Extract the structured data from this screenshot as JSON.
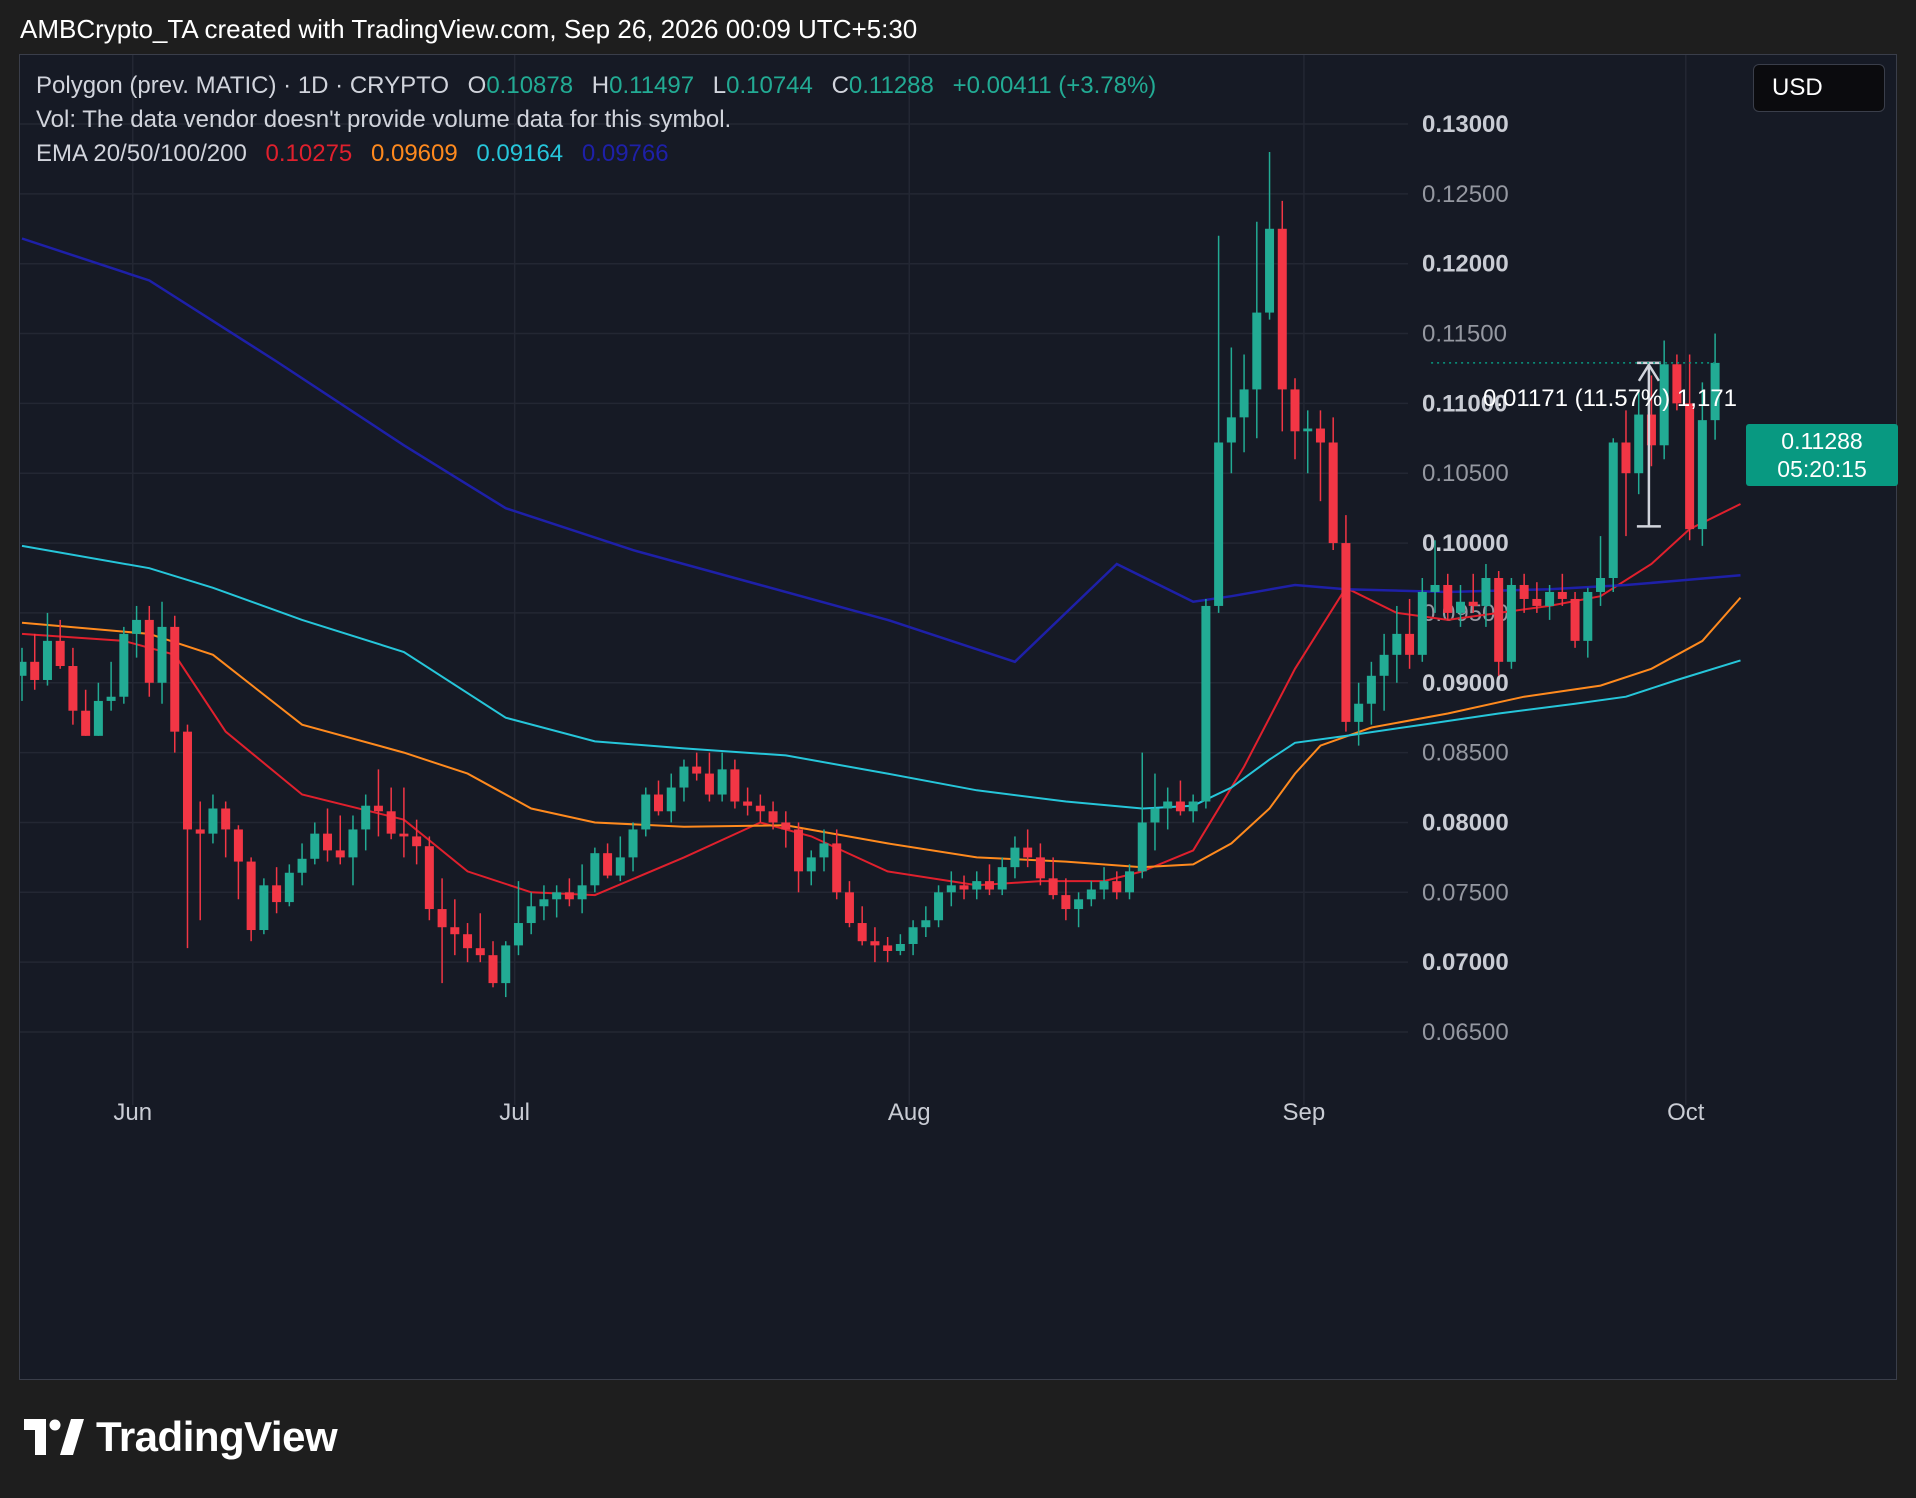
{
  "credit": "AMBCrypto_TA created with TradingView.com, Sep 26, 2026 00:09 UTC+5:30",
  "legend": {
    "symbol": "Polygon (prev. MATIC) · 1D · CRYPTO",
    "o_label": "O",
    "o_value": "0.10878",
    "h_label": "H",
    "h_value": "0.11497",
    "l_label": "L",
    "l_value": "0.10744",
    "c_label": "C",
    "c_value": "0.11288",
    "change": "+0.00411 (+3.78%)",
    "volume_note": "Vol: The data vendor doesn't provide volume data for this symbol.",
    "ema_label": "EMA 20/50/100/200",
    "ema_values": [
      "0.10275",
      "0.09609",
      "0.09164",
      "0.09766"
    ]
  },
  "currency": "USD",
  "price_badge": {
    "price": "0.11288",
    "countdown": "05:20:15"
  },
  "measure_label": "0.01171 (11.57%) 1,171",
  "brand": "TradingView",
  "colors": {
    "up": "#22ab94",
    "down": "#f23645",
    "ema20": "#e0202d",
    "ema50": "#ff8a1e",
    "ema100": "#26c6da",
    "ema200": "#1e20a8",
    "badge": "#089981"
  },
  "chart_data": {
    "type": "candlestick",
    "title": "Polygon (prev. MATIC) · 1D · CRYPTO",
    "x_ticks": [
      "Jun",
      "Jul",
      "Aug",
      "Sep",
      "Oct"
    ],
    "y_ticks": [
      "0.13000",
      "0.12500",
      "0.12000",
      "0.11500",
      "0.11000",
      "0.10500",
      "0.10000",
      "0.09500",
      "0.09000",
      "0.08500",
      "0.08000",
      "0.07500",
      "0.07000",
      "0.06500"
    ],
    "ylim": [
      0.0615,
      0.1375
    ],
    "x_range_days": {
      "start": "May 21",
      "end": "Oct 10"
    },
    "month_start_day_index": {
      "Jun": 8.7,
      "Jul": 38.7,
      "Aug": 69.7,
      "Sep": 100.7,
      "Oct": 130.7
    },
    "candles": [
      [
        0.0905,
        0.0925,
        0.0887,
        0.0915
      ],
      [
        0.0915,
        0.0935,
        0.0895,
        0.0902
      ],
      [
        0.0902,
        0.095,
        0.0898,
        0.093
      ],
      [
        0.093,
        0.0945,
        0.091,
        0.0912
      ],
      [
        0.0912,
        0.0925,
        0.087,
        0.088
      ],
      [
        0.088,
        0.0895,
        0.0862,
        0.0862
      ],
      [
        0.0862,
        0.09,
        0.0862,
        0.0887
      ],
      [
        0.0887,
        0.0915,
        0.088,
        0.089
      ],
      [
        0.089,
        0.094,
        0.0885,
        0.0935
      ],
      [
        0.0935,
        0.0955,
        0.0918,
        0.0945
      ],
      [
        0.0945,
        0.0955,
        0.089,
        0.09
      ],
      [
        0.09,
        0.0958,
        0.0885,
        0.094
      ],
      [
        0.094,
        0.0948,
        0.085,
        0.0865
      ],
      [
        0.0865,
        0.087,
        0.071,
        0.0795
      ],
      [
        0.0795,
        0.0815,
        0.073,
        0.0792
      ],
      [
        0.0792,
        0.082,
        0.0785,
        0.081
      ],
      [
        0.081,
        0.0815,
        0.0775,
        0.0795
      ],
      [
        0.0795,
        0.0798,
        0.0745,
        0.0772
      ],
      [
        0.0772,
        0.0775,
        0.0715,
        0.0723
      ],
      [
        0.0723,
        0.076,
        0.072,
        0.0755
      ],
      [
        0.0755,
        0.0768,
        0.0735,
        0.0743
      ],
      [
        0.0743,
        0.077,
        0.074,
        0.0764
      ],
      [
        0.0764,
        0.0785,
        0.0755,
        0.0774
      ],
      [
        0.0774,
        0.08,
        0.077,
        0.0792
      ],
      [
        0.0792,
        0.081,
        0.0772,
        0.078
      ],
      [
        0.078,
        0.0805,
        0.077,
        0.0775
      ],
      [
        0.0775,
        0.0805,
        0.0755,
        0.0795
      ],
      [
        0.0795,
        0.082,
        0.078,
        0.0812
      ],
      [
        0.0812,
        0.0838,
        0.079,
        0.0808
      ],
      [
        0.0808,
        0.0825,
        0.0788,
        0.0792
      ],
      [
        0.0792,
        0.0825,
        0.0775,
        0.079
      ],
      [
        0.079,
        0.0802,
        0.077,
        0.0783
      ],
      [
        0.0783,
        0.079,
        0.073,
        0.0738
      ],
      [
        0.0738,
        0.076,
        0.0685,
        0.0725
      ],
      [
        0.0725,
        0.0745,
        0.0705,
        0.072
      ],
      [
        0.072,
        0.0728,
        0.07,
        0.071
      ],
      [
        0.071,
        0.0735,
        0.07,
        0.0705
      ],
      [
        0.0705,
        0.0715,
        0.0682,
        0.0685
      ],
      [
        0.0685,
        0.0715,
        0.0675,
        0.0712
      ],
      [
        0.0712,
        0.0758,
        0.0705,
        0.0728
      ],
      [
        0.0728,
        0.075,
        0.072,
        0.074
      ],
      [
        0.074,
        0.0755,
        0.073,
        0.0745
      ],
      [
        0.0745,
        0.0755,
        0.0732,
        0.075
      ],
      [
        0.075,
        0.076,
        0.074,
        0.0745
      ],
      [
        0.0745,
        0.077,
        0.0735,
        0.0755
      ],
      [
        0.0755,
        0.0782,
        0.075,
        0.0778
      ],
      [
        0.0778,
        0.0785,
        0.076,
        0.0762
      ],
      [
        0.0762,
        0.079,
        0.0758,
        0.0775
      ],
      [
        0.0775,
        0.08,
        0.0765,
        0.0795
      ],
      [
        0.0795,
        0.0825,
        0.079,
        0.082
      ],
      [
        0.082,
        0.083,
        0.0805,
        0.0808
      ],
      [
        0.0808,
        0.0835,
        0.08,
        0.0825
      ],
      [
        0.0825,
        0.0845,
        0.0815,
        0.084
      ],
      [
        0.084,
        0.085,
        0.083,
        0.0835
      ],
      [
        0.0835,
        0.085,
        0.0815,
        0.082
      ],
      [
        0.082,
        0.085,
        0.0815,
        0.0838
      ],
      [
        0.0838,
        0.0845,
        0.081,
        0.0815
      ],
      [
        0.0815,
        0.0825,
        0.0805,
        0.0812
      ],
      [
        0.0812,
        0.082,
        0.08,
        0.0808
      ],
      [
        0.0808,
        0.0815,
        0.0795,
        0.08
      ],
      [
        0.08,
        0.0808,
        0.0782,
        0.0795
      ],
      [
        0.0795,
        0.08,
        0.075,
        0.0765
      ],
      [
        0.0765,
        0.078,
        0.0755,
        0.0775
      ],
      [
        0.0775,
        0.0795,
        0.0765,
        0.0785
      ],
      [
        0.0785,
        0.0795,
        0.0745,
        0.075
      ],
      [
        0.075,
        0.0758,
        0.0725,
        0.0728
      ],
      [
        0.0728,
        0.074,
        0.0712,
        0.0715
      ],
      [
        0.0715,
        0.0725,
        0.07,
        0.0712
      ],
      [
        0.0712,
        0.0718,
        0.07,
        0.0708
      ],
      [
        0.0708,
        0.072,
        0.0705,
        0.0713
      ],
      [
        0.0713,
        0.073,
        0.0705,
        0.0725
      ],
      [
        0.0725,
        0.074,
        0.0718,
        0.073
      ],
      [
        0.073,
        0.0755,
        0.0725,
        0.075
      ],
      [
        0.075,
        0.0765,
        0.074,
        0.0755
      ],
      [
        0.0755,
        0.0762,
        0.0745,
        0.0752
      ],
      [
        0.0752,
        0.0765,
        0.0745,
        0.0758
      ],
      [
        0.0758,
        0.077,
        0.0748,
        0.0752
      ],
      [
        0.0752,
        0.0775,
        0.0748,
        0.0768
      ],
      [
        0.0768,
        0.079,
        0.076,
        0.0782
      ],
      [
        0.0782,
        0.0795,
        0.0768,
        0.0775
      ],
      [
        0.0775,
        0.0785,
        0.0755,
        0.076
      ],
      [
        0.076,
        0.0775,
        0.0745,
        0.0748
      ],
      [
        0.0748,
        0.076,
        0.073,
        0.0738
      ],
      [
        0.0738,
        0.075,
        0.0725,
        0.0745
      ],
      [
        0.0745,
        0.0758,
        0.074,
        0.0752
      ],
      [
        0.0752,
        0.0768,
        0.0745,
        0.0758
      ],
      [
        0.0758,
        0.0765,
        0.0745,
        0.075
      ],
      [
        0.075,
        0.077,
        0.0745,
        0.0765
      ],
      [
        0.0765,
        0.085,
        0.076,
        0.08
      ],
      [
        0.08,
        0.0835,
        0.078,
        0.081
      ],
      [
        0.081,
        0.0825,
        0.0795,
        0.0815
      ],
      [
        0.0815,
        0.083,
        0.0805,
        0.0808
      ],
      [
        0.0808,
        0.082,
        0.08,
        0.0815
      ],
      [
        0.0815,
        0.096,
        0.081,
        0.0955
      ],
      [
        0.0955,
        0.122,
        0.095,
        0.1072
      ],
      [
        0.1072,
        0.114,
        0.105,
        0.109
      ],
      [
        0.109,
        0.1135,
        0.1065,
        0.111
      ],
      [
        0.111,
        0.123,
        0.1075,
        0.1165
      ],
      [
        0.1165,
        0.128,
        0.116,
        0.1225
      ],
      [
        0.1225,
        0.1245,
        0.108,
        0.111
      ],
      [
        0.111,
        0.1118,
        0.106,
        0.108
      ],
      [
        0.108,
        0.1095,
        0.105,
        0.1082
      ],
      [
        0.1082,
        0.1095,
        0.103,
        0.1072
      ],
      [
        0.1072,
        0.109,
        0.0995,
        0.1
      ],
      [
        0.1,
        0.102,
        0.0865,
        0.0872
      ],
      [
        0.0872,
        0.09,
        0.0855,
        0.0885
      ],
      [
        0.0885,
        0.0915,
        0.087,
        0.0905
      ],
      [
        0.0905,
        0.0935,
        0.088,
        0.092
      ],
      [
        0.092,
        0.0955,
        0.09,
        0.0935
      ],
      [
        0.0935,
        0.096,
        0.091,
        0.092
      ],
      [
        0.092,
        0.0975,
        0.0915,
        0.0965
      ],
      [
        0.0965,
        0.1002,
        0.095,
        0.097
      ],
      [
        0.097,
        0.0978,
        0.0945,
        0.095
      ],
      [
        0.095,
        0.097,
        0.094,
        0.0958
      ],
      [
        0.0958,
        0.0978,
        0.095,
        0.0955
      ],
      [
        0.0955,
        0.0985,
        0.094,
        0.0975
      ],
      [
        0.0975,
        0.098,
        0.0905,
        0.0915
      ],
      [
        0.0915,
        0.0975,
        0.091,
        0.097
      ],
      [
        0.097,
        0.0978,
        0.095,
        0.096
      ],
      [
        0.096,
        0.0972,
        0.095,
        0.0955
      ],
      [
        0.0955,
        0.097,
        0.0945,
        0.0965
      ],
      [
        0.0965,
        0.0978,
        0.0955,
        0.096
      ],
      [
        0.096,
        0.0965,
        0.0925,
        0.093
      ],
      [
        0.093,
        0.0968,
        0.0918,
        0.0965
      ],
      [
        0.0965,
        0.1005,
        0.0955,
        0.0975
      ],
      [
        0.0975,
        0.1075,
        0.0965,
        0.1072
      ],
      [
        0.1072,
        0.1095,
        0.1005,
        0.105
      ],
      [
        0.105,
        0.111,
        0.1035,
        0.1092
      ],
      [
        0.1092,
        0.112,
        0.1055,
        0.107
      ],
      [
        0.107,
        0.1145,
        0.106,
        0.1128
      ],
      [
        0.1128,
        0.1135,
        0.1095,
        0.11
      ],
      [
        0.11,
        0.1135,
        0.1002,
        0.101
      ],
      [
        0.101,
        0.1115,
        0.0998,
        0.1088
      ],
      [
        0.1088,
        0.115,
        0.1074,
        0.1129
      ]
    ],
    "ema": [
      {
        "name": "EMA 20",
        "color": "#e0202d",
        "points": [
          [
            0,
            0.0935
          ],
          [
            8,
            0.093
          ],
          [
            12,
            0.092
          ],
          [
            16,
            0.0865
          ],
          [
            22,
            0.082
          ],
          [
            30,
            0.0802
          ],
          [
            35,
            0.0765
          ],
          [
            40,
            0.075
          ],
          [
            45,
            0.0748
          ],
          [
            52,
            0.0775
          ],
          [
            58,
            0.08
          ],
          [
            62,
            0.079
          ],
          [
            68,
            0.0765
          ],
          [
            75,
            0.0755
          ],
          [
            80,
            0.0758
          ],
          [
            85,
            0.0758
          ],
          [
            88,
            0.0765
          ],
          [
            92,
            0.078
          ],
          [
            96,
            0.084
          ],
          [
            100,
            0.091
          ],
          [
            104,
            0.0968
          ],
          [
            108,
            0.095
          ],
          [
            112,
            0.0945
          ],
          [
            116,
            0.095
          ],
          [
            120,
            0.0955
          ],
          [
            124,
            0.0962
          ],
          [
            128,
            0.0985
          ],
          [
            131,
            0.101
          ],
          [
            135,
            0.1028
          ]
        ]
      },
      {
        "name": "EMA 50",
        "color": "#ff8a1e",
        "points": [
          [
            0,
            0.0943
          ],
          [
            10,
            0.0935
          ],
          [
            15,
            0.092
          ],
          [
            22,
            0.087
          ],
          [
            30,
            0.085
          ],
          [
            35,
            0.0835
          ],
          [
            40,
            0.081
          ],
          [
            45,
            0.08
          ],
          [
            52,
            0.0797
          ],
          [
            60,
            0.0798
          ],
          [
            68,
            0.0785
          ],
          [
            75,
            0.0775
          ],
          [
            82,
            0.0772
          ],
          [
            88,
            0.0768
          ],
          [
            92,
            0.077
          ],
          [
            95,
            0.0785
          ],
          [
            98,
            0.081
          ],
          [
            100,
            0.0835
          ],
          [
            102,
            0.0855
          ],
          [
            106,
            0.0868
          ],
          [
            112,
            0.0878
          ],
          [
            118,
            0.089
          ],
          [
            124,
            0.0898
          ],
          [
            128,
            0.091
          ],
          [
            132,
            0.093
          ],
          [
            135,
            0.0961
          ]
        ]
      },
      {
        "name": "EMA 100",
        "color": "#26c6da",
        "points": [
          [
            0,
            0.0998
          ],
          [
            10,
            0.0982
          ],
          [
            15,
            0.0968
          ],
          [
            22,
            0.0945
          ],
          [
            30,
            0.0922
          ],
          [
            38,
            0.0875
          ],
          [
            45,
            0.0858
          ],
          [
            52,
            0.0853
          ],
          [
            60,
            0.0848
          ],
          [
            68,
            0.0835
          ],
          [
            75,
            0.0823
          ],
          [
            82,
            0.0815
          ],
          [
            88,
            0.081
          ],
          [
            92,
            0.0812
          ],
          [
            95,
            0.0825
          ],
          [
            98,
            0.0845
          ],
          [
            100,
            0.0857
          ],
          [
            104,
            0.0862
          ],
          [
            110,
            0.087
          ],
          [
            116,
            0.0878
          ],
          [
            122,
            0.0885
          ],
          [
            126,
            0.089
          ],
          [
            130,
            0.0902
          ],
          [
            135,
            0.0916
          ]
        ]
      },
      {
        "name": "EMA 200",
        "color": "#1e20a8",
        "points": [
          [
            0,
            0.1218
          ],
          [
            10,
            0.1188
          ],
          [
            20,
            0.113
          ],
          [
            30,
            0.107
          ],
          [
            38,
            0.1025
          ],
          [
            48,
            0.0995
          ],
          [
            58,
            0.097
          ],
          [
            68,
            0.0945
          ],
          [
            78,
            0.0915
          ],
          [
            86,
            0.0985
          ],
          [
            92,
            0.0958
          ],
          [
            95,
            0.0962
          ],
          [
            100,
            0.097
          ],
          [
            104,
            0.0967
          ],
          [
            112,
            0.0965
          ],
          [
            120,
            0.0967
          ],
          [
            126,
            0.097
          ],
          [
            130,
            0.0973
          ],
          [
            135,
            0.0977
          ]
        ]
      }
    ],
    "measurement": {
      "from": 0.1012,
      "to": 0.1129,
      "change": "0.01171 (11.57%) 1,171"
    }
  }
}
